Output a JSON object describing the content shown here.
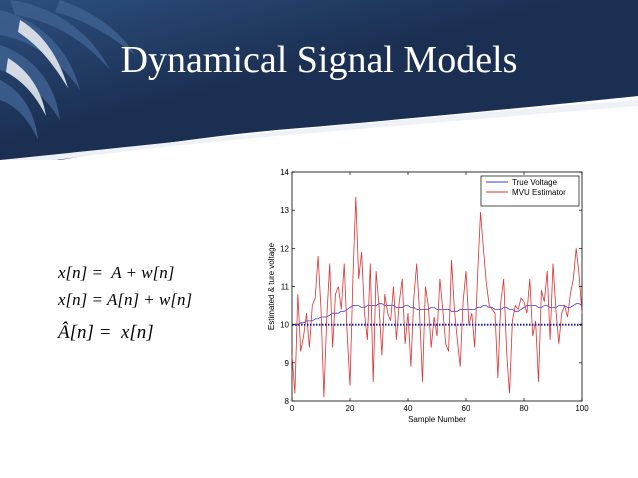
{
  "slide": {
    "title": "Dynamical Signal Models",
    "colors": {
      "banner": "#1b2f52",
      "banner_light": "#2c4f7e",
      "swoosh": "#eef1f6"
    }
  },
  "equations": [
    "x[n] =  A + w[n]",
    "x[n] = A[n] + w[n]",
    "Â[n] =  x[n]"
  ],
  "chart_data": {
    "type": "line",
    "title": "",
    "xlabel": "Sample Number",
    "ylabel": "Estimated & ture voltage",
    "xlim": [
      0,
      100
    ],
    "ylim": [
      8,
      14
    ],
    "xticks": [
      0,
      20,
      40,
      60,
      80,
      100
    ],
    "yticks": [
      8,
      9,
      10,
      11,
      12,
      13,
      14
    ],
    "legend_position": "top-right",
    "grid": false,
    "x": [
      0,
      1,
      2,
      3,
      4,
      5,
      6,
      7,
      8,
      9,
      10,
      11,
      12,
      13,
      14,
      15,
      16,
      17,
      18,
      19,
      20,
      21,
      22,
      23,
      24,
      25,
      26,
      27,
      28,
      29,
      30,
      31,
      32,
      33,
      34,
      35,
      36,
      37,
      38,
      39,
      40,
      41,
      42,
      43,
      44,
      45,
      46,
      47,
      48,
      49,
      50,
      51,
      52,
      53,
      54,
      55,
      56,
      57,
      58,
      59,
      60,
      61,
      62,
      63,
      64,
      65,
      66,
      67,
      68,
      69,
      70,
      71,
      72,
      73,
      74,
      75,
      76,
      77,
      78,
      79,
      80,
      81,
      82,
      83,
      84,
      85,
      86,
      87,
      88,
      89,
      90,
      91,
      92,
      93,
      94,
      95,
      96,
      97,
      98,
      99,
      100
    ],
    "series": [
      {
        "name": "True Voltage",
        "color": "#3b3bd8",
        "values": [
          10.0,
          10.0,
          10.0,
          10.05,
          10.05,
          10.1,
          10.1,
          10.1,
          10.15,
          10.15,
          10.2,
          10.2,
          10.2,
          10.25,
          10.3,
          10.3,
          10.3,
          10.35,
          10.35,
          10.4,
          10.45,
          10.5,
          10.5,
          10.5,
          10.45,
          10.45,
          10.5,
          10.5,
          10.5,
          10.5,
          10.55,
          10.55,
          10.5,
          10.5,
          10.5,
          10.5,
          10.45,
          10.45,
          10.45,
          10.5,
          10.5,
          10.45,
          10.45,
          10.4,
          10.4,
          10.4,
          10.4,
          10.4,
          10.45,
          10.45,
          10.4,
          10.4,
          10.4,
          10.4,
          10.4,
          10.35,
          10.35,
          10.35,
          10.4,
          10.4,
          10.4,
          10.4,
          10.4,
          10.4,
          10.45,
          10.45,
          10.5,
          10.5,
          10.45,
          10.45,
          10.4,
          10.4,
          10.4,
          10.45,
          10.45,
          10.4,
          10.4,
          10.35,
          10.35,
          10.4,
          10.45,
          10.5,
          10.5,
          10.5,
          10.5,
          10.45,
          10.45,
          10.5,
          10.5,
          10.45,
          10.45,
          10.45,
          10.5,
          10.5,
          10.5,
          10.45,
          10.45,
          10.5,
          10.55,
          10.55,
          10.5
        ]
      },
      {
        "name": "MVU Estimator",
        "color": "#e03030",
        "values": [
          9.2,
          8.2,
          10.8,
          9.3,
          9.7,
          10.3,
          9.4,
          10.5,
          10.7,
          11.8,
          10.4,
          8.1,
          10.2,
          11.6,
          9.4,
          10.8,
          11.0,
          10.4,
          11.6,
          9.8,
          8.4,
          11.2,
          13.35,
          11.2,
          11.9,
          10.3,
          9.6,
          11.6,
          8.5,
          11.4,
          10.5,
          9.2,
          10.8,
          10.3,
          10.1,
          11.0,
          9.6,
          10.6,
          11.2,
          9.5,
          10.3,
          8.9,
          10.7,
          11.6,
          10.3,
          8.5,
          11.0,
          10.5,
          9.4,
          10.2,
          9.7,
          11.2,
          10.4,
          9.5,
          9.3,
          11.7,
          10.4,
          9.6,
          8.9,
          10.6,
          11.4,
          10.0,
          10.3,
          9.4,
          11.3,
          12.95,
          12.0,
          11.1,
          10.5,
          10.4,
          10.3,
          8.6,
          10.6,
          11.2,
          9.3,
          8.2,
          10.1,
          10.5,
          10.4,
          10.7,
          10.6,
          10.3,
          11.2,
          9.7,
          10.1,
          8.5,
          10.9,
          10.6,
          11.4,
          9.6,
          11.6,
          10.4,
          9.5,
          10.3,
          10.5,
          10.2,
          10.8,
          11.2,
          12.0,
          11.3,
          10.3
        ]
      },
      {
        "name": "",
        "color": "#1a1ab0",
        "style": "dotted",
        "values": [
          10,
          10,
          10,
          10,
          10,
          10,
          10,
          10,
          10,
          10,
          10,
          10,
          10,
          10,
          10,
          10,
          10,
          10,
          10,
          10,
          10,
          10,
          10,
          10,
          10,
          10,
          10,
          10,
          10,
          10,
          10,
          10,
          10,
          10,
          10,
          10,
          10,
          10,
          10,
          10,
          10,
          10,
          10,
          10,
          10,
          10,
          10,
          10,
          10,
          10,
          10,
          10,
          10,
          10,
          10,
          10,
          10,
          10,
          10,
          10,
          10,
          10,
          10,
          10,
          10,
          10,
          10,
          10,
          10,
          10,
          10,
          10,
          10,
          10,
          10,
          10,
          10,
          10,
          10,
          10,
          10,
          10,
          10,
          10,
          10,
          10,
          10,
          10,
          10,
          10,
          10,
          10,
          10,
          10,
          10,
          10,
          10,
          10,
          10,
          10,
          10
        ]
      }
    ]
  }
}
